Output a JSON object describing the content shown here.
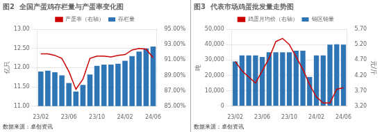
{
  "chart_data": [
    {
      "type": "bar",
      "title": "图2  全国产蛋鸡存栏量与产蛋率变化图",
      "ylabel": "亿只",
      "annotations": [
        "数据来源：卓创资讯"
      ],
      "categories": [
        "23/02",
        null,
        null,
        null,
        "23/06",
        null,
        null,
        null,
        "23/10",
        null,
        null,
        null,
        "24/02",
        null,
        null,
        null,
        "24/06"
      ],
      "series": [
        {
          "name": "存栏量",
          "color": "#2E75B6",
          "values": [
            11.9,
            11.92,
            11.88,
            11.8,
            11.6,
            11.38,
            11.55,
            11.82,
            12.05,
            12.08,
            12.08,
            12.1,
            12.18,
            12.3,
            12.42,
            12.5,
            12.55
          ]
        },
        {
          "name": "产蛋率（右轴）",
          "type": "line",
          "axis": "y2",
          "color": "#CC0000",
          "values": [
            91.8,
            91.8,
            91.6,
            91.2,
            89.5,
            87.2,
            88.5,
            91.2,
            91.5,
            91.5,
            91.4,
            91.6,
            91.7,
            92.3,
            92.5,
            92.4,
            91.3
          ]
        }
      ],
      "ylim": [
        11.0,
        13.0
      ],
      "yticks": [
        {
          "value": 11.0,
          "label": "11.00"
        },
        {
          "value": 11.5,
          "label": "11.50"
        },
        {
          "value": 12.0,
          "label": "12.00"
        },
        {
          "value": 12.5,
          "label": "12.50"
        },
        {
          "value": 13.0,
          "label": "13.00"
        }
      ],
      "y2lim": [
        85.0,
        95.0
      ],
      "y2ticks": [
        {
          "value": 85.0,
          "label": "85.00%"
        },
        {
          "value": 87.0,
          "label": "87.00%"
        },
        {
          "value": 89.0,
          "label": "89.00%"
        },
        {
          "value": 91.0,
          "label": "91.00%"
        },
        {
          "value": 93.0,
          "label": "93.00%"
        },
        {
          "value": 95.0,
          "label": "95.00%"
        }
      ],
      "grid": true,
      "legend": "top"
    },
    {
      "type": "bar",
      "title": "图3  代表市场鸡蛋批发量走势图",
      "ylabel": "吨",
      "y2label": "元/斤",
      "annotations": [
        "数据来源：卓创资讯"
      ],
      "categories": [
        "23/02",
        null,
        null,
        null,
        "23/06",
        null,
        null,
        null,
        "23/10",
        null,
        null,
        null,
        "24/02",
        null,
        null,
        null,
        "24/06"
      ],
      "series": [
        {
          "name": "销区销量",
          "color": "#2E75B6",
          "values": [
            29000,
            33000,
            33000,
            33000,
            32000,
            35000,
            35000,
            35000,
            35000,
            36000,
            36000,
            19000,
            33000,
            33000,
            40000,
            40200,
            40000
          ]
        },
        {
          "name": "鸡蛋月均价（右轴）",
          "type": "line",
          "axis": "y2",
          "color": "#CC0000",
          "values": [
            4.65,
            4.35,
            4.15,
            3.95,
            4.35,
            4.75,
            5.3,
            5.4,
            5.2,
            4.8,
            4.4,
            3.9,
            3.5,
            3.3,
            3.3,
            3.75,
            3.8
          ]
        }
      ],
      "ylim": [
        0,
        50000
      ],
      "yticks": [
        0,
        {
          "value": 10000,
          "label": "10,000"
        },
        {
          "value": 20000,
          "label": "20,000"
        },
        {
          "value": 30000,
          "label": "30,000"
        },
        {
          "value": 40000,
          "label": "40,000"
        },
        {
          "value": 50000,
          "label": "50,000"
        }
      ],
      "y2lim": [
        3.2,
        5.7
      ],
      "y2ticks": [
        {
          "value": 3.2,
          "label": "3.20"
        },
        {
          "value": 3.7,
          "label": "3.70"
        },
        {
          "value": 4.2,
          "label": "4.20"
        },
        {
          "value": 4.7,
          "label": "4.70"
        },
        {
          "value": 5.2,
          "label": "5.20"
        },
        {
          "value": 5.7,
          "label": "5.70"
        }
      ],
      "grid": true,
      "legend": "top"
    }
  ]
}
